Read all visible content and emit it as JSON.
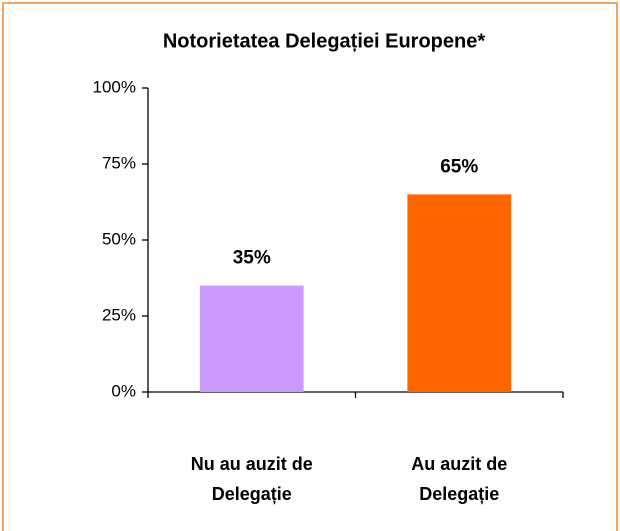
{
  "chart_data": {
    "type": "bar",
    "title": "Notorietatea Delegației Europene*",
    "categories": [
      [
        "Nu au auzit de",
        "Delegație"
      ],
      [
        "Au auzit de",
        "Delegație"
      ]
    ],
    "values": [
      35,
      65
    ],
    "value_labels": [
      "35%",
      "65%"
    ],
    "colors": [
      "#cc99ff",
      "#ff6600"
    ],
    "ylim": [
      0,
      100
    ],
    "yticks": [
      {
        "value": 0,
        "label": "0%"
      },
      {
        "value": 25,
        "label": "25%"
      },
      {
        "value": 50,
        "label": "50%"
      },
      {
        "value": 75,
        "label": "75%"
      },
      {
        "value": 100,
        "label": "100%"
      }
    ]
  }
}
